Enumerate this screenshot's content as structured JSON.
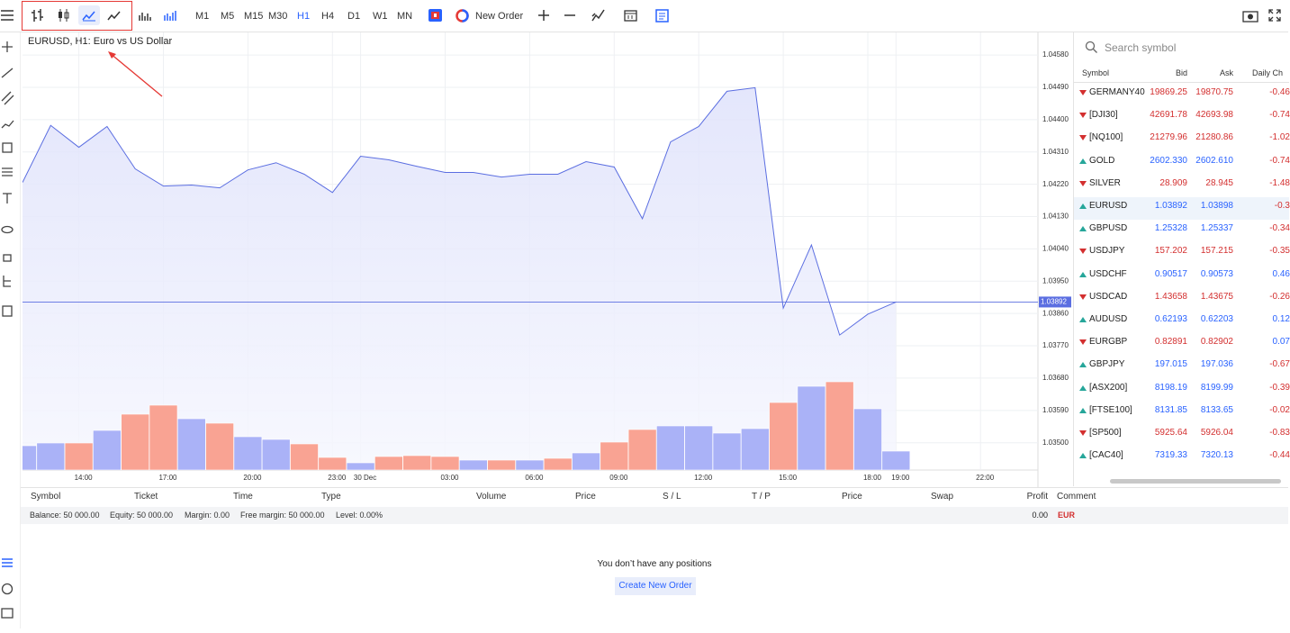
{
  "toolbar": {
    "timeframes": [
      "M1",
      "M5",
      "M15",
      "M30",
      "H1",
      "H4",
      "D1",
      "W1",
      "MN"
    ],
    "new_order": "New Order"
  },
  "chart_data": {
    "type": "area",
    "title": "EURUSD, H1: Euro vs US Dollar",
    "categories": [
      null,
      null,
      "14:00",
      null,
      null,
      "17:00",
      null,
      null,
      "20:00",
      null,
      null,
      "23:00",
      "30 Dec",
      null,
      null,
      "03:00",
      null,
      null,
      "06:00",
      null,
      null,
      "09:00",
      null,
      null,
      "12:00",
      null,
      null,
      "15:00",
      null,
      null,
      "18:00",
      "19:00",
      null,
      null,
      "22:00"
    ],
    "values": [
      1.04225,
      1.04384,
      1.04323,
      1.04381,
      1.04263,
      1.04215,
      1.04218,
      1.0421,
      1.0426,
      1.0428,
      1.04248,
      1.04197,
      1.04298,
      1.04288,
      1.0427,
      1.04253,
      1.04253,
      1.0424,
      1.04248,
      1.04248,
      1.04283,
      1.04268,
      1.04124,
      1.04338,
      1.04381,
      1.04479,
      1.04489,
      1.03875,
      1.04051,
      1.038,
      1.03858,
      1.03892,
      null,
      null,
      null
    ],
    "color": "#5b6ee1",
    "volume": {
      "values": [
        27,
        30,
        30,
        44,
        62,
        72,
        57,
        52,
        37,
        34,
        29,
        14,
        8,
        15,
        16,
        15,
        11,
        11,
        11,
        13,
        19,
        31,
        45,
        49,
        49,
        41,
        46,
        75,
        93,
        98,
        68,
        21,
        null,
        null,
        null
      ],
      "colors": [
        "#aab2f7",
        "#aab2f7",
        "#f9a393",
        "#aab2f7",
        "#f9a393",
        "#f9a393",
        "#aab2f7",
        "#f9a393",
        "#aab2f7",
        "#aab2f7",
        "#f9a393",
        "#f9a393",
        "#aab2f7",
        "#f9a393",
        "#f9a393",
        "#f9a393",
        "#aab2f7",
        "#f9a393",
        "#aab2f7",
        "#f9a393",
        "#aab2f7",
        "#f9a393",
        "#f9a393",
        "#aab2f7",
        "#aab2f7",
        "#aab2f7",
        "#aab2f7",
        "#f9a393",
        "#aab2f7",
        "#f9a393",
        "#aab2f7",
        "#aab2f7",
        null,
        null,
        null
      ]
    },
    "current_price": 1.03892,
    "ylim": [
      1.03424,
      1.04643
    ],
    "yticks": [
      {
        "value": 1.0458,
        "label": "1.04580"
      },
      {
        "value": 1.0449,
        "label": "1.04490"
      },
      {
        "value": 1.044,
        "label": "1.04400"
      },
      {
        "value": 1.0431,
        "label": "1.04310"
      },
      {
        "value": 1.0422,
        "label": "1.04220"
      },
      {
        "value": 1.0413,
        "label": "1.04130"
      },
      {
        "value": 1.0404,
        "label": "1.04040"
      },
      {
        "value": 1.0395,
        "label": "1.03950"
      },
      {
        "value": 1.0386,
        "label": "1.03860"
      },
      {
        "value": 1.0377,
        "label": "1.03770"
      },
      {
        "value": 1.0368,
        "label": "1.03680"
      },
      {
        "value": 1.0359,
        "label": "1.03590"
      },
      {
        "value": 1.035,
        "label": "1.03500"
      }
    ],
    "grid": true
  },
  "watchlist": {
    "search_placeholder": "Search symbol",
    "columns": [
      "Symbol",
      "Bid",
      "Ask",
      "Daily Ch"
    ],
    "rows": [
      {
        "symbol": "GERMANY40",
        "bid": "19869.25",
        "ask": "19870.75",
        "change": "-0.46",
        "color": "#d32f2f"
      },
      {
        "symbol": "[DJI30]",
        "bid": "42691.78",
        "ask": "42693.98",
        "change": "-0.74",
        "color": "#d32f2f"
      },
      {
        "symbol": "[NQ100]",
        "bid": "21279.96",
        "ask": "21280.86",
        "change": "-1.02",
        "color": "#d32f2f"
      },
      {
        "symbol": "GOLD",
        "bid": "2602.330",
        "ask": "2602.610",
        "change": "-0.74",
        "color": "#2962ff"
      },
      {
        "symbol": "SILVER",
        "bid": "28.909",
        "ask": "28.945",
        "change": "-1.48",
        "color": "#d32f2f"
      },
      {
        "symbol": "EURUSD",
        "bid": "1.03892",
        "ask": "1.03898",
        "change": "-0.3",
        "color": "#2962ff"
      },
      {
        "symbol": "GBPUSD",
        "bid": "1.25328",
        "ask": "1.25337",
        "change": "-0.34",
        "color": "#2962ff"
      },
      {
        "symbol": "USDJPY",
        "bid": "157.202",
        "ask": "157.215",
        "change": "-0.35",
        "color": "#d32f2f"
      },
      {
        "symbol": "USDCHF",
        "bid": "0.90517",
        "ask": "0.90573",
        "change": "0.46",
        "color": "#2962ff"
      },
      {
        "symbol": "USDCAD",
        "bid": "1.43658",
        "ask": "1.43675",
        "change": "-0.26",
        "color": "#d32f2f"
      },
      {
        "symbol": "AUDUSD",
        "bid": "0.62193",
        "ask": "0.62203",
        "change": "0.12",
        "color": "#2962ff"
      },
      {
        "symbol": "EURGBP",
        "bid": "0.82891",
        "ask": "0.82902",
        "change": "0.07",
        "color": "#d32f2f"
      },
      {
        "symbol": "GBPJPY",
        "bid": "197.015",
        "ask": "197.036",
        "change": "-0.67",
        "color": "#2962ff"
      },
      {
        "symbol": "[ASX200]",
        "bid": "8198.19",
        "ask": "8199.99",
        "change": "-0.39",
        "color": "#2962ff"
      },
      {
        "symbol": "[FTSE100]",
        "bid": "8131.85",
        "ask": "8133.65",
        "change": "-0.02",
        "color": "#2962ff"
      },
      {
        "symbol": "[SP500]",
        "bid": "5925.64",
        "ask": "5926.04",
        "change": "-0.83",
        "color": "#d32f2f"
      },
      {
        "symbol": "[CAC40]",
        "bid": "7319.33",
        "ask": "7320.13",
        "change": "-0.44",
        "color": "#2962ff"
      }
    ]
  },
  "positions": {
    "columns": [
      "Symbol",
      "Ticket",
      "Time",
      "Type",
      "Volume",
      "Price",
      "S / L",
      "T / P",
      "Price",
      "Swap",
      "Profit",
      "Comment"
    ],
    "summary": [
      "Balance: 50 000.00",
      "Equity: 50 000.00",
      "Margin: 0.00",
      "Free margin: 50 000.00",
      "Level: 0.00%"
    ],
    "profit": "0.00",
    "currency": "EUR",
    "empty_message": "You don’t have any positions",
    "button": "Create New Order"
  }
}
